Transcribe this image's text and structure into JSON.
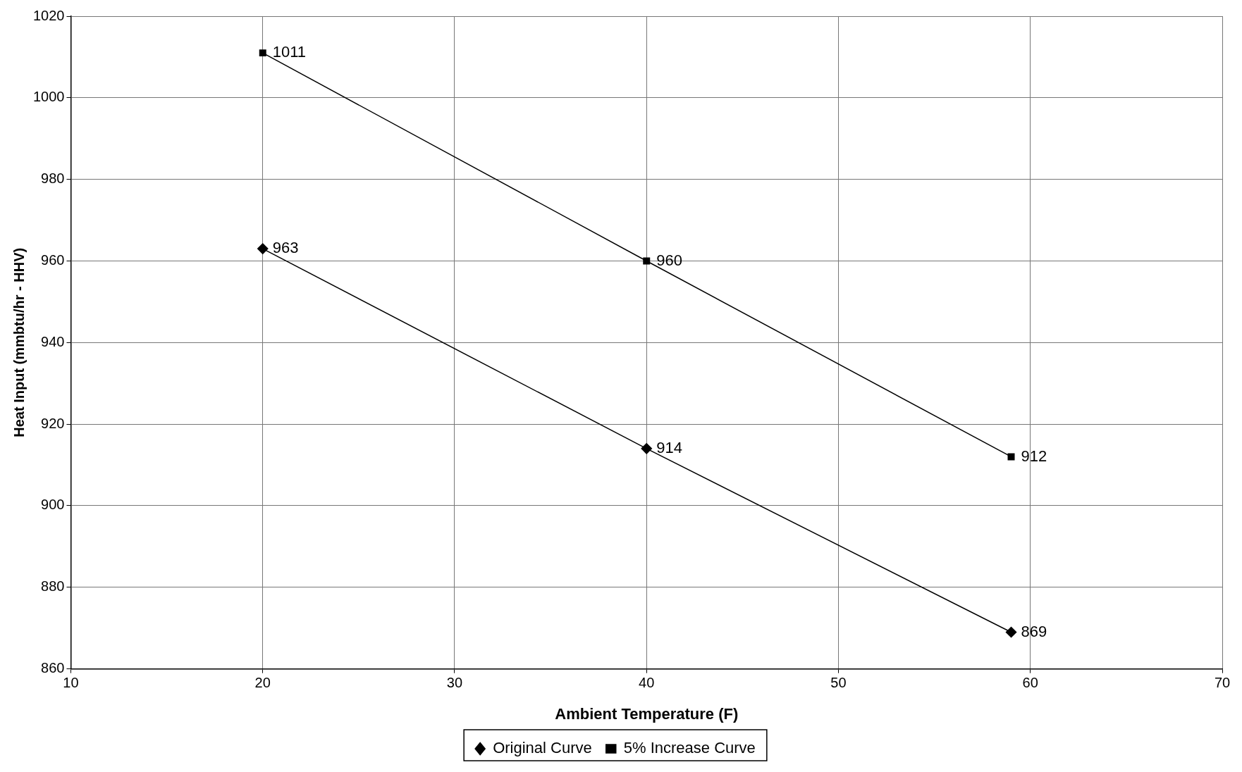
{
  "chart_data": {
    "type": "line",
    "xlabel": "Ambient Temperature (F)",
    "ylabel": "Heat Input (mmbtu/hr - HHV)",
    "x": [
      20,
      40,
      59
    ],
    "series": [
      {
        "name": "Original Curve",
        "color": "#000000",
        "marker": "diamond",
        "values": [
          963,
          914,
          869
        ]
      },
      {
        "name": "5% Increase Curve",
        "color": "#000000",
        "marker": "square",
        "values": [
          1011,
          960,
          912
        ]
      }
    ],
    "xlim": [
      10,
      70
    ],
    "xticks": [
      10,
      20,
      30,
      40,
      50,
      60,
      70
    ],
    "ylim": [
      860,
      1020
    ],
    "yticks": [
      860,
      880,
      900,
      920,
      940,
      960,
      980,
      1000,
      1020
    ],
    "grid": true,
    "legend": "bottom",
    "data_labels": true,
    "line_style": "solid"
  }
}
